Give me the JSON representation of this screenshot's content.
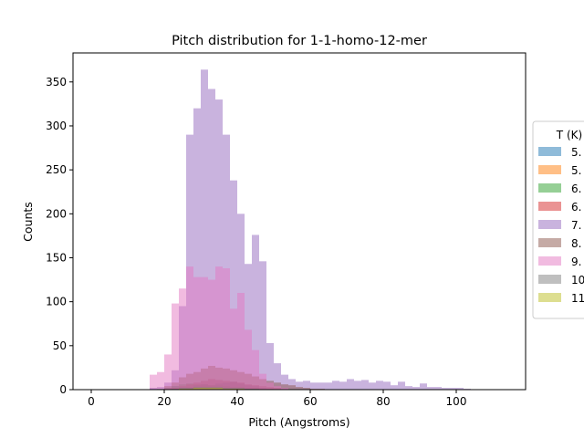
{
  "chart_data": {
    "type": "bar",
    "title": "Pitch distribution for 1-1-homo-12-mer",
    "xlabel": "Pitch (Angstroms)",
    "ylabel": "Counts",
    "xlim": [
      -5,
      119
    ],
    "ylim": [
      0,
      383
    ],
    "xticks": [
      0,
      20,
      40,
      60,
      80,
      100
    ],
    "yticks": [
      0,
      50,
      100,
      150,
      200,
      250,
      300,
      350
    ],
    "bin_width": 2,
    "alpha": 0.5,
    "grid": false,
    "legend": {
      "title": "T (K)",
      "placement": "right, outside plot (clipped)",
      "entries": [
        "5.",
        "5.",
        "6.",
        "6.",
        "7.",
        "8.",
        "9.",
        "10",
        "11"
      ]
    },
    "series": [
      {
        "color": "#1f77b4",
        "bin_starts": [
          16,
          18,
          20,
          22,
          24,
          26,
          28,
          30,
          32,
          34,
          36,
          38,
          40,
          42,
          44,
          46,
          48
        ],
        "values": [
          1,
          1,
          2,
          4,
          3,
          3,
          5,
          6,
          5,
          7,
          8,
          9,
          7,
          5,
          4,
          2,
          1
        ]
      },
      {
        "color": "#ff7f0e",
        "bin_starts": [
          20,
          22,
          24,
          26,
          28,
          30,
          32,
          34,
          36,
          38,
          40,
          42,
          44,
          46
        ],
        "values": [
          1,
          1,
          2,
          3,
          3,
          4,
          4,
          3,
          3,
          2,
          2,
          1,
          1,
          1
        ]
      },
      {
        "color": "#2ca02c",
        "bin_starts": [
          18,
          20,
          22,
          24,
          26,
          28,
          30,
          32,
          34,
          36,
          38,
          40,
          42,
          44,
          46,
          48
        ],
        "values": [
          1,
          2,
          4,
          6,
          7,
          6,
          6,
          5,
          5,
          4,
          3,
          3,
          2,
          2,
          1,
          1
        ]
      },
      {
        "color": "#d62728",
        "bin_starts": [
          20,
          22,
          24,
          26,
          28,
          30,
          32,
          34,
          36,
          38,
          40,
          42,
          44,
          46,
          48,
          50
        ],
        "values": [
          1,
          2,
          4,
          6,
          8,
          10,
          12,
          11,
          10,
          9,
          8,
          6,
          5,
          4,
          3,
          2
        ]
      },
      {
        "color": "#9467bd",
        "bin_starts": [
          16,
          18,
          20,
          22,
          24,
          26,
          28,
          30,
          32,
          34,
          36,
          38,
          40,
          42,
          44,
          46,
          48,
          50,
          52,
          54,
          56,
          58,
          60,
          62,
          64,
          66,
          68,
          70,
          72,
          74,
          76,
          78,
          80,
          82,
          84,
          86,
          88,
          90,
          92,
          94,
          96,
          98,
          100,
          102
        ],
        "values": [
          2,
          3,
          8,
          22,
          95,
          290,
          320,
          364,
          342,
          330,
          290,
          238,
          200,
          143,
          176,
          146,
          53,
          30,
          17,
          12,
          9,
          10,
          8,
          8,
          8,
          10,
          9,
          12,
          10,
          11,
          8,
          10,
          9,
          5,
          9,
          4,
          3,
          7,
          3,
          3,
          2,
          2,
          2,
          1
        ]
      },
      {
        "color": "#8c564b",
        "bin_starts": [
          20,
          22,
          24,
          26,
          28,
          30,
          32,
          34,
          36,
          38,
          40,
          42,
          44,
          46,
          48,
          50,
          52,
          54,
          56,
          58,
          60,
          62
        ],
        "values": [
          4,
          8,
          14,
          18,
          20,
          24,
          27,
          25,
          24,
          22,
          20,
          18,
          15,
          12,
          10,
          8,
          6,
          5,
          3,
          2,
          1,
          1
        ]
      },
      {
        "color": "#e377c2",
        "bin_starts": [
          16,
          18,
          20,
          22,
          24,
          26,
          28,
          30,
          32,
          34,
          36,
          38,
          40,
          42,
          44,
          46,
          48,
          50,
          52
        ],
        "values": [
          17,
          20,
          40,
          98,
          115,
          140,
          128,
          128,
          125,
          140,
          138,
          92,
          110,
          68,
          45,
          18,
          8,
          4,
          2
        ]
      },
      {
        "color": "#7f7f7f",
        "bin_starts": [
          22,
          24,
          26,
          28,
          30,
          32,
          34,
          36,
          38,
          40,
          42,
          44
        ],
        "values": [
          1,
          2,
          2,
          3,
          3,
          3,
          3,
          2,
          2,
          2,
          1,
          1
        ]
      },
      {
        "color": "#bcbd22",
        "bin_starts": [
          24,
          26,
          28,
          30,
          32,
          34,
          36,
          38,
          40
        ],
        "values": [
          1,
          1,
          2,
          2,
          2,
          2,
          1,
          1,
          1
        ]
      }
    ]
  }
}
